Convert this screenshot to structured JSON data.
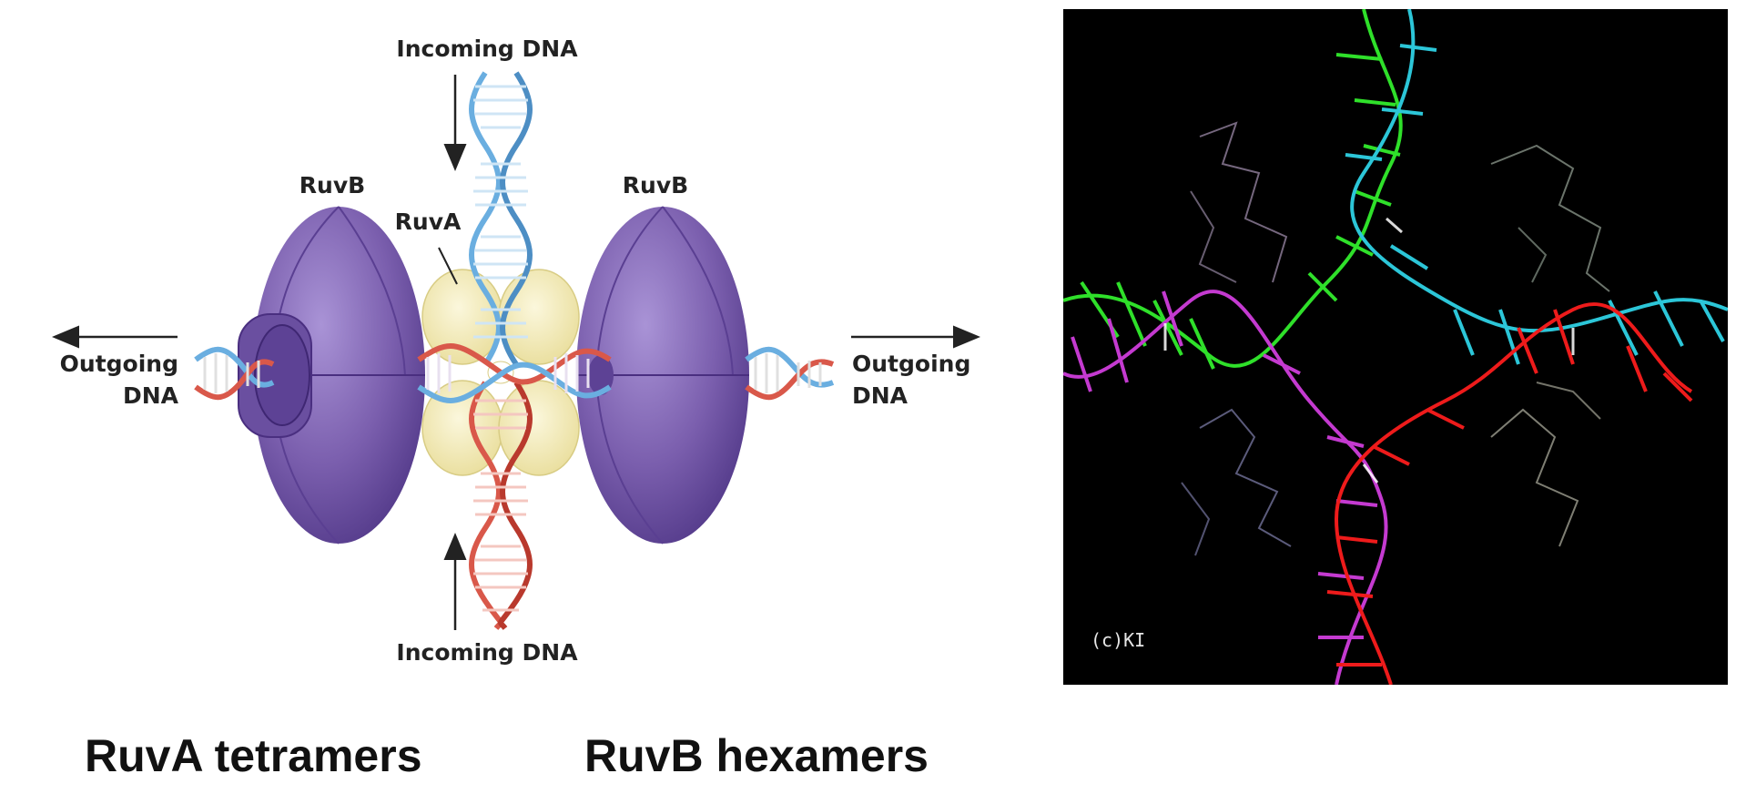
{
  "diagram": {
    "labels": {
      "incoming_top": "Incoming DNA",
      "incoming_bottom": "Incoming DNA",
      "ruvb_left": "RuvB",
      "ruvb_right": "RuvB",
      "ruva": "RuvA",
      "outgoing_left_line1": "Outgoing",
      "outgoing_left_line2": "DNA",
      "outgoing_right_line1": "Outgoing",
      "outgoing_right_line2": "DNA"
    },
    "colors": {
      "ruvb_purple": "#7b5fae",
      "ruva_yellow": "#f5efc0",
      "dna_blue": "#6aaee0",
      "dna_red": "#d9584a",
      "arrow": "#222222"
    }
  },
  "structure_render": {
    "copyright": "(c)KI",
    "colors": {
      "background": "#000000",
      "strand_green": "#2fe02a",
      "strand_cyan": "#2cc6d8",
      "strand_magenta": "#c43ad0",
      "strand_red": "#ee1b1b"
    }
  },
  "captions": {
    "ruva": "RuvA tetramers",
    "ruvb": "RuvB hexamers"
  }
}
